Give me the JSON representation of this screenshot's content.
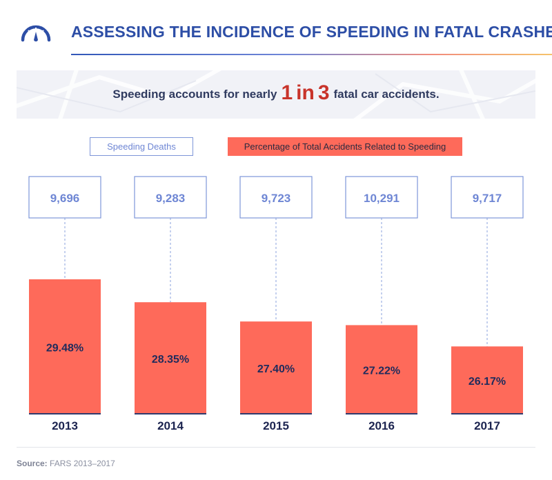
{
  "header": {
    "title": "ASSESSING THE INCIDENCE OF SPEEDING IN FATAL CRASHES",
    "icon": "speedometer-icon"
  },
  "banner": {
    "text_before": "Speeding accounts for nearly",
    "highlight_1": "1",
    "highlight_in": "in",
    "highlight_3": "3",
    "text_after": "fatal car accidents."
  },
  "legend": {
    "deaths": "Speeding Deaths",
    "percentage": "Percentage of Total Accidents Related to Speeding"
  },
  "chart_data": {
    "type": "bar",
    "categories": [
      "2013",
      "2014",
      "2015",
      "2016",
      "2017"
    ],
    "series": [
      {
        "name": "Speeding Deaths",
        "values": [
          9696,
          9283,
          9723,
          10291,
          9717
        ],
        "labels": [
          "9,696",
          "9,283",
          "9,723",
          "10,291",
          "9,717"
        ]
      },
      {
        "name": "Percentage of Total Accidents Related to Speeding",
        "values": [
          29.48,
          28.35,
          27.4,
          27.22,
          26.17
        ],
        "labels": [
          "29.48%",
          "28.35%",
          "27.40%",
          "27.22%",
          "26.17%"
        ]
      }
    ],
    "colors": {
      "bar": "#fe6a5a",
      "bar_text": "#1f2b5c",
      "box_border": "#7d95d8",
      "box_text": "#6e86d4",
      "axis": "#2f3a6e",
      "year_text": "#1c2450"
    }
  },
  "footer": {
    "source_label": "Source:",
    "source_text": "FARS 2013–2017"
  }
}
